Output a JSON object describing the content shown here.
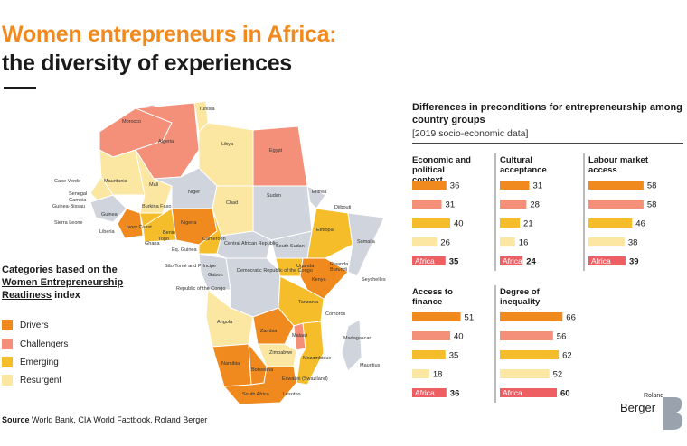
{
  "title_line1": "Women entrepreneurs in Africa:",
  "title_line2": "the diversity of experiences",
  "legend": {
    "title_part1": "Categories based on the ",
    "title_part2": "Women Entrepreneurship Readiness",
    "title_part3": " index",
    "items": [
      {
        "label": "Drivers",
        "color": "#f08a1e"
      },
      {
        "label": "Challengers",
        "color": "#f4907a"
      },
      {
        "label": "Emerging",
        "color": "#f5bd2a"
      },
      {
        "label": "Resurgent",
        "color": "#fbe7a2"
      }
    ]
  },
  "source_label": "Source",
  "source_text": " World Bank, CIA World Factbook, Roland Berger",
  "right_title": "Differences in preconditions for entrepreneurship among country groups",
  "right_subtitle": "[2019 socio-economic data]",
  "logo_top": "Roland",
  "logo_bottom": "Berger",
  "map_labels": [
    "Tunisia",
    "Morocco",
    "Algeria",
    "Libya",
    "Egypt",
    "Cape Verde",
    "Mauritania",
    "Mali",
    "Niger",
    "Chad",
    "Sudan",
    "Eritrea",
    "Senegal",
    "Gambia",
    "Guinea-Bissau",
    "Guinea",
    "Sierra Leone",
    "Liberia",
    "Ivory Coast",
    "Burkina Faso",
    "Ghana",
    "Togo",
    "Benin",
    "Nigeria",
    "Cameroon",
    "Eq. Guinea",
    "São Tomé and Príncipe",
    "Gabon",
    "Central African Republic",
    "South Sudan",
    "Ethiopia",
    "Djibouti",
    "Somalia",
    "Uganda",
    "Kenya",
    "Rwanda",
    "Burundi",
    "Democratic Republic of the Congo",
    "Republic of the Congo",
    "Tanzania",
    "Seychelles",
    "Angola",
    "Zambia",
    "Malawi",
    "Comoros",
    "Mozambique",
    "Madagascar",
    "Mauritius",
    "Zimbabwe",
    "Namibia",
    "Botswana",
    "South Africa",
    "Eswatini (Swaziland)",
    "Lesotho"
  ],
  "chart_data": {
    "type": "bar",
    "categories": [
      "Drivers",
      "Challengers",
      "Emerging",
      "Resurgent",
      "Africa"
    ],
    "colors": [
      "#f08a1e",
      "#f4907a",
      "#f5bd2a",
      "#fbe7a2",
      "#ee5f64"
    ],
    "panels": [
      {
        "title": "Economic and political context",
        "values": [
          36,
          31,
          40,
          26,
          35
        ]
      },
      {
        "title": "Cultural acceptance",
        "values": [
          31,
          28,
          21,
          16,
          24
        ]
      },
      {
        "title": "Labour market access",
        "values": [
          58,
          58,
          46,
          38,
          39
        ]
      },
      {
        "title": "Access to finance",
        "values": [
          51,
          40,
          35,
          18,
          36
        ]
      },
      {
        "title": "Degree of inequality",
        "values": [
          66,
          56,
          62,
          52,
          60
        ]
      }
    ]
  }
}
